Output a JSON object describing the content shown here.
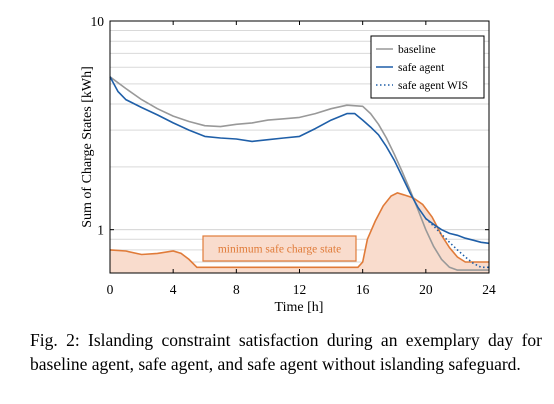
{
  "chart_data": {
    "type": "line",
    "ylabel": "Sum of Charge States [kWh]",
    "xlabel": "Time [h]",
    "x_ticks": [
      0,
      4,
      8,
      12,
      16,
      20,
      24
    ],
    "y_ticks": [
      1,
      10
    ],
    "xlim": [
      0,
      24
    ],
    "ylim": [
      0.62,
      10
    ],
    "y_scale": "log",
    "grid": true,
    "legend_position": "top-right",
    "annotation": "minimum safe charge state",
    "series": [
      {
        "name": "baseline",
        "color": "#999999",
        "style": "solid",
        "x": [
          0,
          1,
          2,
          3,
          4,
          5,
          6,
          7,
          8,
          9,
          10,
          11,
          12,
          13,
          14,
          15,
          16,
          16.5,
          17,
          17.5,
          18,
          18.5,
          19,
          19.5,
          20,
          20.5,
          21,
          21.5,
          22,
          22.5,
          23,
          23.5,
          24
        ],
        "values": [
          5.4,
          4.75,
          4.2,
          3.8,
          3.5,
          3.3,
          3.15,
          3.12,
          3.2,
          3.25,
          3.35,
          3.4,
          3.45,
          3.6,
          3.8,
          3.95,
          3.9,
          3.6,
          3.2,
          2.75,
          2.3,
          1.9,
          1.55,
          1.25,
          1.0,
          0.83,
          0.72,
          0.66,
          0.64,
          0.64,
          0.64,
          0.64,
          0.64
        ]
      },
      {
        "name": "safe agent",
        "color": "#1f5fa8",
        "style": "solid",
        "x": [
          0,
          0.5,
          1,
          2,
          3,
          4,
          5,
          6,
          7,
          8,
          9,
          10,
          11,
          12,
          13,
          14,
          15,
          15.5,
          16,
          16.5,
          17,
          17.5,
          18,
          18.5,
          19,
          19.5,
          20,
          20.5,
          21,
          21.5,
          22,
          22.5,
          23,
          23.5,
          24
        ],
        "values": [
          5.4,
          4.6,
          4.2,
          3.85,
          3.55,
          3.25,
          3.0,
          2.8,
          2.75,
          2.72,
          2.65,
          2.7,
          2.75,
          2.8,
          3.05,
          3.35,
          3.6,
          3.6,
          3.35,
          3.1,
          2.85,
          2.5,
          2.15,
          1.8,
          1.5,
          1.28,
          1.13,
          1.06,
          1.0,
          0.96,
          0.94,
          0.91,
          0.89,
          0.87,
          0.86
        ]
      },
      {
        "name": "safe agent WIS",
        "color": "#1f5fa8",
        "style": "dotted",
        "x": [
          20,
          20.5,
          21,
          21.5,
          22,
          22.5,
          23,
          23.5,
          24
        ],
        "values": [
          1.13,
          1.04,
          0.95,
          0.87,
          0.8,
          0.74,
          0.69,
          0.66,
          0.66
        ]
      },
      {
        "name": "minimum safe charge state",
        "color": "#e07b39",
        "fill": "#f9dccd",
        "style": "area",
        "x": [
          0,
          1,
          2,
          3,
          4,
          4.5,
          5,
          5.5,
          6,
          7,
          8,
          9,
          10,
          11,
          12,
          13,
          14,
          15,
          15.7,
          16,
          16.3,
          16.8,
          17.3,
          17.8,
          18.2,
          18.6,
          19.2,
          19.8,
          20.4,
          21,
          21.5,
          22,
          22.5,
          23,
          23.5,
          24
        ],
        "values": [
          0.8,
          0.79,
          0.76,
          0.77,
          0.79,
          0.77,
          0.72,
          0.66,
          0.66,
          0.66,
          0.66,
          0.66,
          0.66,
          0.66,
          0.66,
          0.66,
          0.66,
          0.66,
          0.66,
          0.7,
          0.9,
          1.1,
          1.3,
          1.45,
          1.5,
          1.47,
          1.42,
          1.32,
          1.15,
          0.94,
          0.82,
          0.74,
          0.7,
          0.7,
          0.7,
          0.7
        ]
      }
    ]
  },
  "caption": "Fig. 2: Islanding constraint satisfaction during an exemplary day for baseline agent, safe agent, and safe agent without islanding safeguard."
}
